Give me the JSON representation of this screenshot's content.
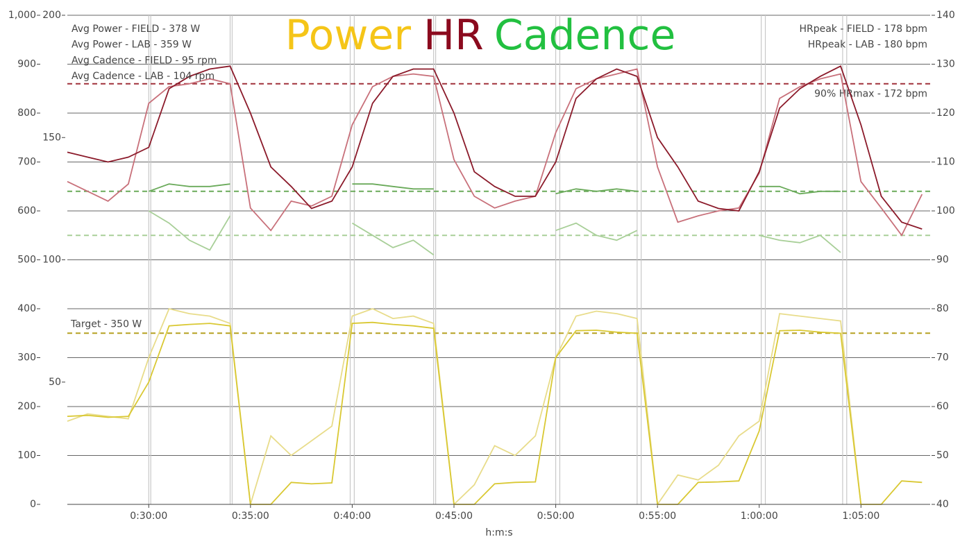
{
  "chart_data": {
    "type": "line",
    "title_parts": [
      {
        "text": "Power",
        "color": "#f5c518"
      },
      {
        "text": "HR",
        "color": "#8b0a1e"
      },
      {
        "text": "Cadence",
        "color": "#22c040"
      }
    ],
    "xlabel": "h:m:s",
    "x": [
      26,
      27,
      28,
      29,
      30,
      31,
      32,
      33,
      34,
      35,
      36,
      37,
      38,
      39,
      40,
      41,
      42,
      43,
      44,
      45,
      46,
      47,
      48,
      49,
      50,
      51,
      52,
      53,
      54,
      55,
      56,
      57,
      58,
      59,
      60,
      61,
      62,
      63,
      64,
      65,
      66,
      67,
      68
    ],
    "xlim": [
      26,
      68.4
    ],
    "xticks": [
      {
        "value": 30,
        "label": "0:30:00"
      },
      {
        "value": 35,
        "label": "0:35:00"
      },
      {
        "value": 40,
        "label": "0:40:00"
      },
      {
        "value": 45,
        "label": "0:45:00"
      },
      {
        "value": 50,
        "label": "0:50:00"
      },
      {
        "value": 55,
        "label": "0:55:00"
      },
      {
        "value": 60,
        "label": "1:00:00"
      },
      {
        "value": 65,
        "label": "1:05:00"
      }
    ],
    "ylim": [
      0,
      1000
    ],
    "yticks": [
      0,
      100,
      200,
      300,
      400,
      500,
      600,
      700,
      800,
      900,
      {
        "value": 1000,
        "label": "1,000"
      }
    ],
    "y3lim": [
      0,
      200
    ],
    "y3ticks": [
      50,
      100,
      150,
      200
    ],
    "y2lim": [
      40,
      140
    ],
    "y2ticks": [
      40,
      50,
      60,
      70,
      80,
      90,
      100,
      110,
      120,
      130,
      140
    ],
    "grid": true,
    "interval_lines": [
      30.0,
      30.1,
      34.0,
      34.1,
      39.9,
      40.1,
      44.0,
      44.1,
      50.0,
      50.2,
      54.0,
      54.2,
      60.1,
      60.3,
      64.1,
      64.3
    ],
    "series": [
      {
        "name": "Power FIELD",
        "color": "#e8dc8a",
        "axis": "y",
        "values": [
          170,
          185,
          180,
          175,
          300,
          400,
          390,
          385,
          370,
          0,
          140,
          100,
          130,
          160,
          385,
          400,
          380,
          385,
          370,
          0,
          40,
          120,
          100,
          140,
          300,
          385,
          395,
          390,
          380,
          0,
          60,
          50,
          80,
          140,
          170,
          390,
          385,
          380,
          375,
          0,
          null,
          null,
          null
        ]
      },
      {
        "name": "Power LAB",
        "color": "#d9c832",
        "axis": "y",
        "values": [
          180,
          182,
          178,
          180,
          250,
          365,
          368,
          370,
          365,
          0,
          0,
          45,
          42,
          44,
          370,
          372,
          368,
          365,
          360,
          0,
          0,
          42,
          45,
          46,
          300,
          355,
          356,
          352,
          350,
          0,
          0,
          45,
          46,
          48,
          150,
          355,
          356,
          352,
          350,
          0,
          0,
          48,
          45
        ]
      },
      {
        "name": "Cadence FIELD",
        "color": "#a8cf98",
        "axis": "y3",
        "values": [
          null,
          null,
          null,
          null,
          120,
          115,
          108,
          104,
          118,
          null,
          null,
          null,
          null,
          null,
          115,
          110,
          105,
          108,
          102,
          null,
          null,
          null,
          null,
          null,
          112,
          115,
          110,
          108,
          112,
          null,
          null,
          null,
          null,
          null,
          110,
          108,
          107,
          110,
          103,
          null,
          null,
          null,
          null
        ]
      },
      {
        "name": "Cadence LAB",
        "color": "#6aaa5a",
        "axis": "y3",
        "values": [
          null,
          null,
          null,
          null,
          128,
          131,
          130,
          130,
          131,
          null,
          null,
          null,
          null,
          null,
          131,
          131,
          130,
          129,
          129,
          null,
          null,
          null,
          null,
          null,
          127,
          129,
          128,
          129,
          128,
          null,
          null,
          null,
          null,
          null,
          130,
          130,
          127,
          128,
          128,
          null,
          null,
          null,
          null
        ]
      },
      {
        "name": "HR FIELD",
        "color": "#c8707a",
        "axis": "y2",
        "values": [
          106,
          104,
          102,
          105.5,
          122,
          125.4,
          126,
          127,
          126,
          100.6,
          96,
          102,
          101,
          103,
          117.6,
          125.4,
          127.5,
          128,
          127.5,
          110.5,
          103,
          100.6,
          102,
          103,
          116,
          125,
          127,
          128,
          129,
          109,
          97.7,
          99,
          100,
          100.6,
          107.7,
          123,
          125.4,
          127,
          128,
          106,
          100.6,
          95,
          103.4
        ]
      },
      {
        "name": "HR LAB",
        "color": "#8b1a2a",
        "axis": "y2",
        "values": [
          112,
          111,
          110,
          111,
          113,
          125,
          127.5,
          129,
          129.6,
          120,
          109,
          105,
          100.5,
          102,
          109,
          122,
          127.5,
          129,
          129,
          120,
          108,
          105,
          103,
          103,
          110,
          123,
          127,
          129,
          127.5,
          115,
          109,
          102,
          100.5,
          100,
          108,
          121,
          125,
          127.5,
          129.6,
          117.6,
          103,
          97.7,
          96.3
        ]
      }
    ],
    "reference_lines": [
      {
        "label": "Target - 350 W",
        "value": 350,
        "axis": "y",
        "color": "#b5a020"
      },
      {
        "label": "90% HRmax - 172 bpm",
        "value": 126,
        "axis": "y2",
        "color": "#a0303a"
      },
      {
        "value": 128,
        "axis": "y3",
        "color": "#6aaa5a"
      },
      {
        "value": 110,
        "axis": "y3",
        "color": "#a8cf98"
      }
    ],
    "legend_left": [
      {
        "text": "Avg Power - FIELD - 378 W",
        "color": "#e0d27a"
      },
      {
        "text": "Avg Power - LAB - 359 W",
        "color": "#c9b822"
      },
      {
        "text": "Avg Cadence - FIELD - 95 rpm",
        "color": "#a8cf98"
      },
      {
        "text": "Avg Cadence - LAB - 104 rpm",
        "color": "#6aaa5a"
      }
    ],
    "legend_right": [
      {
        "text": "HRpeak - FIELD - 178 bpm",
        "color": "#c8707a"
      },
      {
        "text": "HRpeak - LAB - 180 bpm",
        "color": "#8b1a2a"
      }
    ]
  }
}
